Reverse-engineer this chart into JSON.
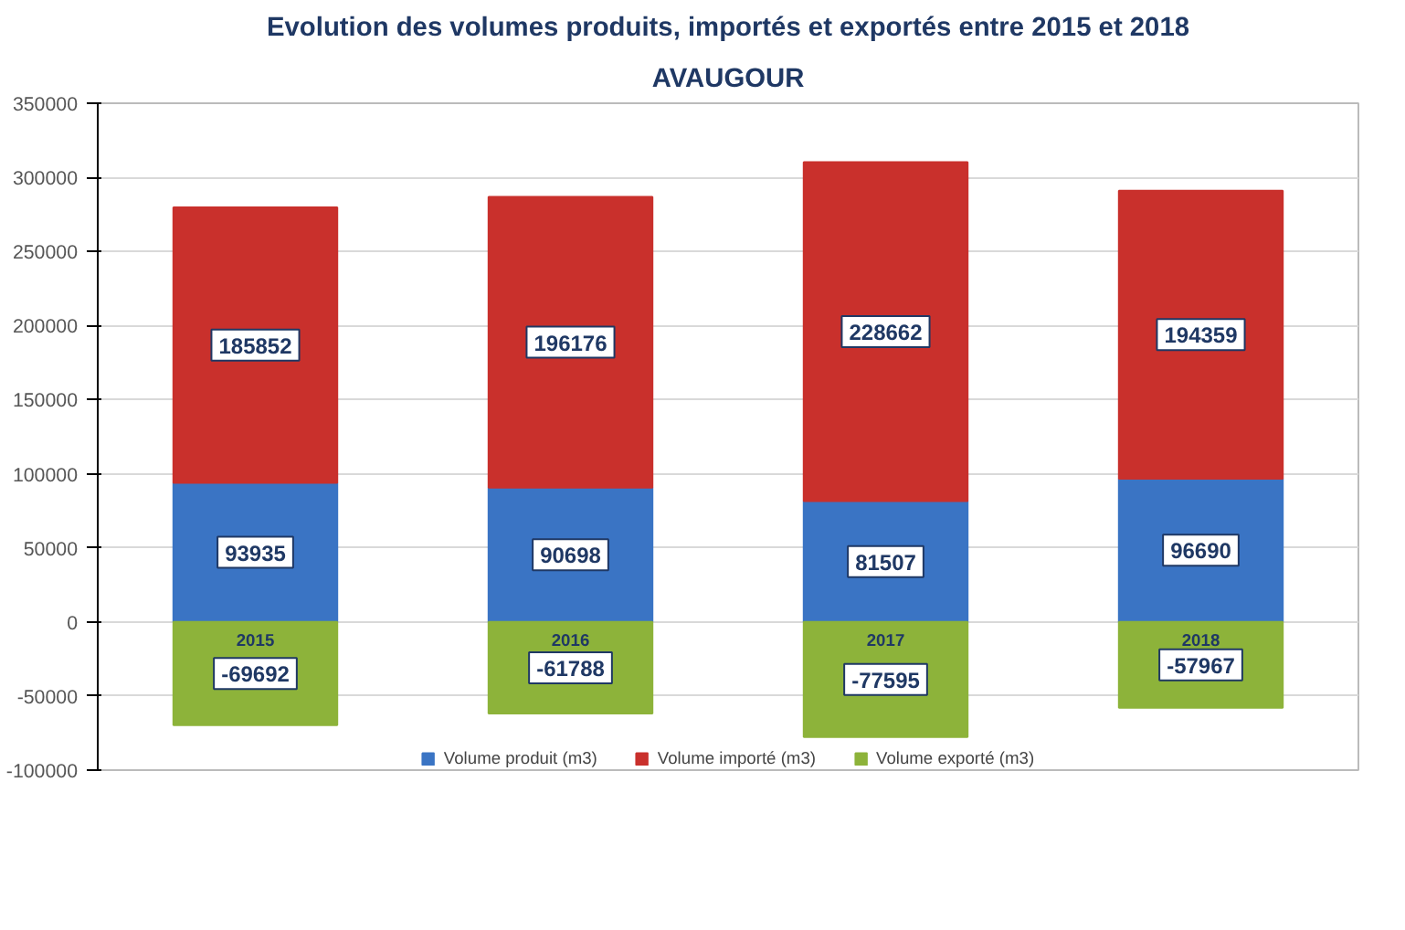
{
  "chart_data": {
    "type": "bar",
    "stacked": true,
    "title": "Evolution des volumes produits, importés et exportés entre 2015 et 2018",
    "subtitle": "AVAUGOUR",
    "categories": [
      "2015",
      "2016",
      "2017",
      "2018"
    ],
    "series": [
      {
        "name": "Volume produit (m3)",
        "color": "#3a74c4",
        "values": [
          93935,
          90698,
          81507,
          96690
        ]
      },
      {
        "name": "Volume importé (m3)",
        "color": "#c9302c",
        "values": [
          185852,
          196176,
          228662,
          194359
        ]
      },
      {
        "name": "Volume exporté (m3)",
        "color": "#8db33a",
        "values": [
          -69692,
          -61788,
          -77595,
          -57967
        ]
      }
    ],
    "ylim": [
      -100000,
      350000
    ],
    "yticks": [
      -100000,
      -50000,
      0,
      50000,
      100000,
      150000,
      200000,
      250000,
      300000,
      350000
    ],
    "grid": "y",
    "legend": "bottom",
    "data_labels": true
  }
}
